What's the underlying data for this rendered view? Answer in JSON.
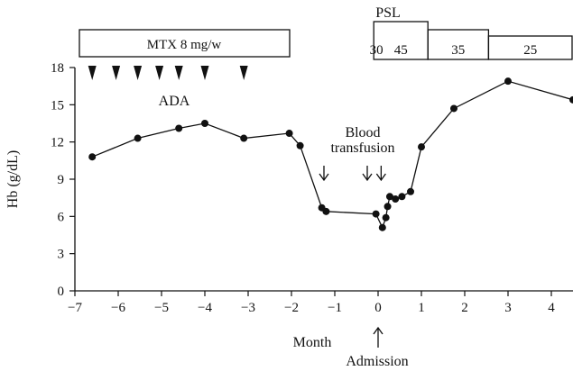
{
  "chart_data": {
    "type": "line",
    "xlabel": "Month",
    "ylabel": "Hb (g/dL)",
    "xlim": [
      -7,
      4.5
    ],
    "ylim": [
      0,
      18
    ],
    "x_ticks": [
      -7,
      -6,
      -5,
      -4,
      -3,
      -2,
      -1,
      0,
      1,
      2,
      3,
      4
    ],
    "x_tick_labels": [
      "−7",
      "−6",
      "−5",
      "−4",
      "−3",
      "−2",
      "−1",
      "0",
      "1",
      "2",
      "3",
      "4"
    ],
    "y_ticks": [
      0,
      3,
      6,
      9,
      12,
      15,
      18
    ],
    "y_tick_labels": [
      "0",
      "3",
      "6",
      "9",
      "12",
      "15",
      "18"
    ],
    "grid": false,
    "series": [
      {
        "x": [
          -6.6,
          -5.55,
          -4.6,
          -4.0,
          -3.1,
          -2.05,
          -1.8,
          -1.3,
          -1.2,
          -0.05,
          0.1,
          0.18,
          0.22,
          0.27,
          0.4,
          0.55,
          0.75,
          1.0,
          1.75,
          3.0,
          4.5
        ],
        "y": [
          10.8,
          12.3,
          13.1,
          13.5,
          12.3,
          12.7,
          11.7,
          6.7,
          6.4,
          6.2,
          5.1,
          5.9,
          6.8,
          7.6,
          7.4,
          7.6,
          8.0,
          11.6,
          14.7,
          16.9,
          15.4
        ]
      }
    ],
    "mtx_label": "MTX 8 mg/w",
    "ada_label": "ADA",
    "ada_markers_x": [
      -6.6,
      -6.05,
      -5.55,
      -5.05,
      -4.6,
      -4.0,
      -3.1
    ],
    "transfusion_label": [
      "Blood",
      "transfusion"
    ],
    "transfusion_x": [
      -1.25,
      -0.25,
      0.07
    ],
    "admission_label": "Admission",
    "admission_x": 0,
    "psl_label": "PSL",
    "psl_doses": [
      {
        "label": "30",
        "start": -0.2,
        "end": -0.1,
        "level": "low"
      },
      {
        "label": "45",
        "start": -0.1,
        "end": 1.15,
        "level": "high"
      },
      {
        "label": "35",
        "start": 1.15,
        "end": 2.55,
        "level": "mid"
      },
      {
        "label": "25",
        "start": 2.55,
        "end": 4.5,
        "level": "low"
      }
    ]
  }
}
